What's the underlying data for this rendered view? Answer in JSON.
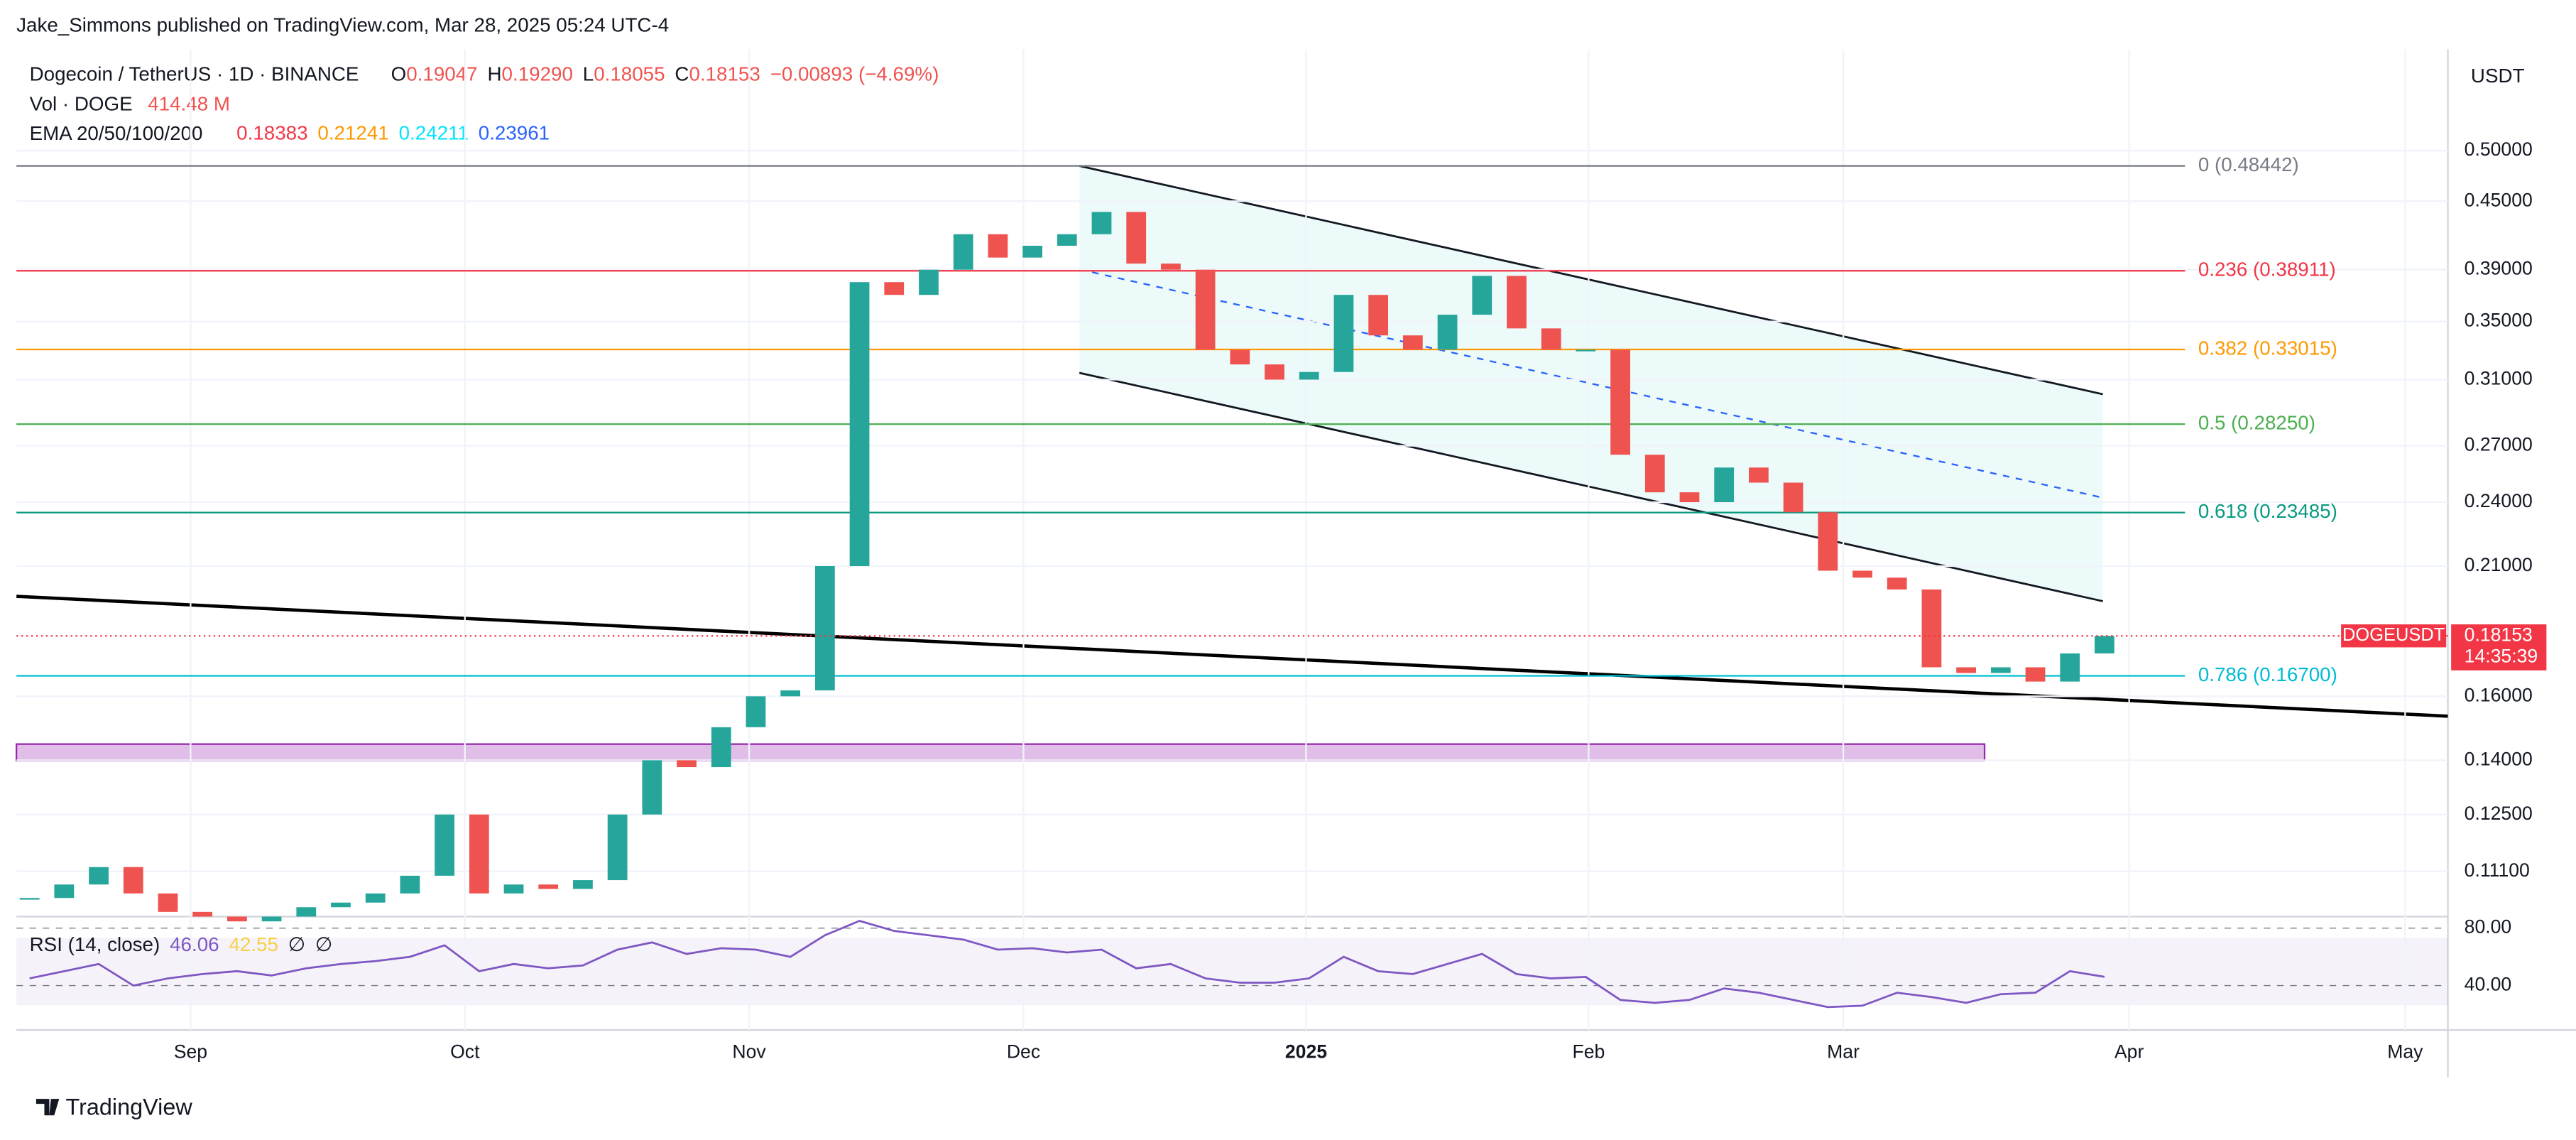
{
  "header": {
    "publisher": "Jake_Simmons published on TradingView.com, Mar 28, 2025 05:24 UTC-4",
    "symbol": "Dogecoin / TetherUS · 1D · BINANCE",
    "ohlc": [
      {
        "key": "O",
        "value": {
          "value": 0.19047,
          "label": "0.19047"
        }
      },
      {
        "key": "H",
        "value": {
          "value": 0.1929,
          "label": "0.19290"
        }
      },
      {
        "key": "L",
        "value": {
          "value": 0.18055,
          "label": "0.18055"
        }
      },
      {
        "key": "C",
        "value": {
          "value": 0.18153,
          "label": "0.18153"
        }
      }
    ],
    "change": {
      "value": -0.00893,
      "label": "−0.00893 (−4.69%)"
    },
    "volume_title": "Vol · DOGE",
    "volume": "414.48 M",
    "ema_title": "EMA 20/50/100/200",
    "ema": [
      {
        "value": 0.18383,
        "color": "#f23645"
      },
      {
        "value": 0.21241,
        "color": "#ff9800"
      },
      {
        "value": 0.24211,
        "color": "#00e5ff"
      },
      {
        "value": 0.23961,
        "color": "#2962ff"
      }
    ],
    "currency": "USDT",
    "footer": "TradingView"
  },
  "chart_data": {
    "type": "candlestick",
    "log_scale": true,
    "up_color": "#26a69a",
    "down_color": "#ef5350",
    "closes": [
      0.105,
      0.108,
      0.112,
      0.106,
      0.102,
      0.101,
      0.1,
      0.101,
      0.103,
      0.104,
      0.106,
      0.11,
      0.125,
      0.106,
      0.108,
      0.107,
      0.109,
      0.125,
      0.14,
      0.138,
      0.15,
      0.16,
      0.162,
      0.21,
      0.38,
      0.37,
      0.39,
      0.42,
      0.4,
      0.41,
      0.42,
      0.44,
      0.395,
      0.39,
      0.33,
      0.32,
      0.31,
      0.315,
      0.37,
      0.34,
      0.33,
      0.355,
      0.385,
      0.345,
      0.33,
      0.33,
      0.265,
      0.245,
      0.24,
      0.258,
      0.25,
      0.235,
      0.208,
      0.205,
      0.2,
      0.17,
      0.168,
      0.17,
      0.165,
      0.175,
      0.18153
    ],
    "x_labels": [
      "Sep",
      "Oct",
      "Nov",
      "Dec",
      "2025",
      "Feb",
      "Mar",
      "Apr",
      "May"
    ],
    "ylim": [
      0.101,
      0.618
    ],
    "yticks": [
      {
        "value": 0.5,
        "label": "0.50000"
      },
      {
        "value": 0.45,
        "label": "0.45000"
      },
      {
        "value": 0.39,
        "label": "0.39000"
      },
      {
        "value": 0.35,
        "label": "0.35000"
      },
      {
        "value": 0.31,
        "label": "0.31000"
      },
      {
        "value": 0.27,
        "label": "0.27000"
      },
      {
        "value": 0.24,
        "label": "0.24000"
      },
      {
        "value": 0.21,
        "label": "0.21000"
      },
      {
        "value": 0.16,
        "label": "0.16000"
      },
      {
        "value": 0.14,
        "label": "0.14000"
      },
      {
        "value": 0.125,
        "label": "0.12500"
      },
      {
        "value": 0.111,
        "label": "0.11100"
      }
    ],
    "fib": [
      {
        "label": "0 (0.48442)",
        "price": 0.48442,
        "color": "#787b86"
      },
      {
        "label": "0.236 (0.38911)",
        "price": 0.38911,
        "color": "#f23645"
      },
      {
        "label": "0.382 (0.33015)",
        "price": 0.33015,
        "color": "#ff9800"
      },
      {
        "label": "0.5 (0.28250)",
        "price": 0.2825,
        "color": "#4caf50"
      },
      {
        "label": "0.618 (0.23485)",
        "price": 0.23485,
        "color": "#089981"
      },
      {
        "label": "0.786 (0.16700)",
        "price": 0.167,
        "color": "#00bcd4"
      }
    ],
    "price_tag": {
      "symbol": "DOGEUSDT",
      "price": {
        "value": 0.18153,
        "label": "0.18153"
      },
      "countdown": "14:35:39",
      "color": "#f23645"
    },
    "rsi": {
      "title": "RSI (14, close)",
      "value": 46.06,
      "ma": 42.55,
      "na": [
        "∅",
        "∅"
      ],
      "color": "#7e57c2",
      "ma_color": "#f7d046",
      "values": [
        45,
        50,
        55,
        40,
        45,
        48,
        50,
        47,
        52,
        55,
        57,
        60,
        68,
        50,
        55,
        52,
        54,
        65,
        70,
        62,
        66,
        65,
        60,
        75,
        85,
        78,
        75,
        72,
        65,
        66,
        63,
        65,
        52,
        55,
        45,
        42,
        42,
        45,
        60,
        50,
        48,
        55,
        62,
        48,
        45,
        46,
        30,
        28,
        30,
        38,
        35,
        30,
        25,
        26,
        35,
        32,
        28,
        34,
        35,
        50,
        46.06
      ],
      "ylim": [
        11.4,
        85.7
      ],
      "yticks": [
        {
          "value": 80,
          "label": "80.00"
        },
        {
          "value": 40,
          "label": "40.00"
        }
      ]
    }
  }
}
